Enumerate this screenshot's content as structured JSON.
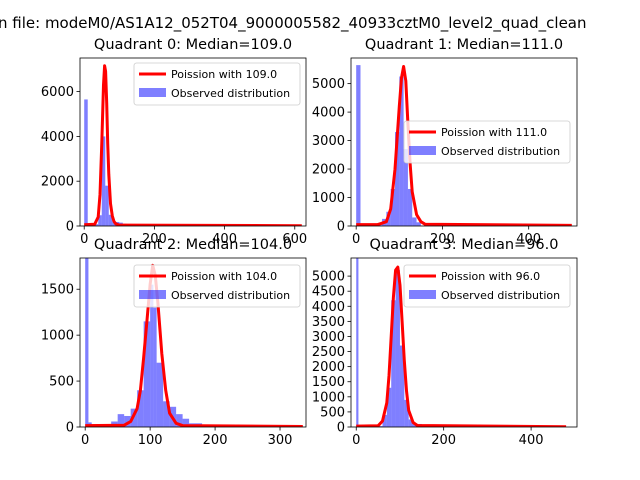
{
  "figure": {
    "suptitle": "n file: modeM0/AS1A12_052T04_9000005582_40933cztM0_level2_quad_clean"
  },
  "colors": {
    "fit": "#ff0000",
    "observed": "#0000ff",
    "axes": "#000000",
    "background": "#ffffff"
  },
  "chart_data": [
    {
      "type": "bar",
      "title": "Quadrant 0: Median=109.0",
      "xlim": [
        -12,
        632
      ],
      "ylim": [
        0,
        7500
      ],
      "xticks": [
        0,
        200,
        400,
        600
      ],
      "yticks": [
        0,
        2000,
        4000,
        6000
      ],
      "legend": {
        "placement": "top-right",
        "entries": [
          "Poission with 109.0",
          "Observed distribution"
        ]
      },
      "series": [
        {
          "name": "Observed distribution",
          "kind": "histogram",
          "bins": [
            [
              0,
              10,
              5650
            ],
            [
              10,
              20,
              80
            ],
            [
              20,
              30,
              70
            ],
            [
              30,
              40,
              80
            ],
            [
              40,
              50,
              480
            ],
            [
              50,
              60,
              4000
            ],
            [
              60,
              70,
              1800
            ],
            [
              70,
              80,
              500
            ],
            [
              80,
              90,
              200
            ],
            [
              90,
              100,
              180
            ],
            [
              100,
              110,
              150
            ],
            [
              110,
              120,
              100
            ],
            [
              120,
              130,
              60
            ],
            [
              130,
              150,
              30
            ],
            [
              150,
              620,
              15
            ]
          ]
        },
        {
          "name": "Poission with 109.0",
          "kind": "line",
          "x": [
            0,
            30,
            40,
            45,
            50,
            55,
            58,
            61,
            64,
            67,
            70,
            75,
            80,
            85,
            90,
            100,
            620
          ],
          "y": [
            60,
            80,
            400,
            1400,
            3700,
            6300,
            7150,
            6900,
            5500,
            3700,
            2300,
            1000,
            450,
            200,
            100,
            40,
            15
          ]
        }
      ]
    },
    {
      "type": "bar",
      "title": "Quadrant 1: Median=111.0",
      "xlim": [
        -12,
        512
      ],
      "ylim": [
        0,
        5900
      ],
      "xticks": [
        0,
        200,
        400
      ],
      "yticks": [
        0,
        1000,
        2000,
        3000,
        4000,
        5000
      ],
      "legend": {
        "placement": "center-right",
        "entries": [
          "Poission with 111.0",
          "Observed distribution"
        ]
      },
      "series": [
        {
          "name": "Observed distribution",
          "kind": "histogram",
          "bins": [
            [
              0,
              10,
              5650
            ],
            [
              10,
              60,
              30
            ],
            [
              60,
              70,
              250
            ],
            [
              70,
              80,
              500
            ],
            [
              80,
              90,
              1300
            ],
            [
              90,
              100,
              3300
            ],
            [
              100,
              110,
              5250
            ],
            [
              110,
              120,
              2700
            ],
            [
              120,
              130,
              1300
            ],
            [
              130,
              140,
              300
            ],
            [
              140,
              150,
              130
            ],
            [
              150,
              500,
              10
            ]
          ]
        },
        {
          "name": "Poission with 111.0",
          "kind": "line",
          "x": [
            0,
            50,
            70,
            80,
            90,
            100,
            105,
            110,
            115,
            120,
            125,
            130,
            140,
            150,
            160,
            500
          ],
          "y": [
            50,
            50,
            150,
            600,
            2000,
            4200,
            5200,
            5600,
            5100,
            3600,
            2200,
            1200,
            400,
            150,
            60,
            20
          ]
        }
      ]
    },
    {
      "type": "bar",
      "title": "Quadrant 2: Median=104.0",
      "xlim": [
        -8,
        340
      ],
      "ylim": [
        0,
        1840
      ],
      "xticks": [
        0,
        100,
        200,
        300
      ],
      "yticks": [
        0,
        500,
        1000,
        1500
      ],
      "legend": {
        "placement": "top-right",
        "entries": [
          "Poission with 104.0",
          "Observed distribution"
        ]
      },
      "series": [
        {
          "name": "Observed distribution",
          "kind": "histogram",
          "bins": [
            [
              0,
              5,
              1840
            ],
            [
              5,
              10,
              50
            ],
            [
              10,
              40,
              30
            ],
            [
              40,
              50,
              60
            ],
            [
              50,
              60,
              140
            ],
            [
              60,
              70,
              120
            ],
            [
              70,
              80,
              200
            ],
            [
              80,
              90,
              400
            ],
            [
              90,
              100,
              1150
            ],
            [
              100,
              105,
              1550
            ],
            [
              105,
              110,
              1300
            ],
            [
              110,
              120,
              700
            ],
            [
              120,
              130,
              280
            ],
            [
              130,
              140,
              220
            ],
            [
              140,
              150,
              140
            ],
            [
              150,
              160,
              90
            ],
            [
              160,
              180,
              40
            ],
            [
              180,
              335,
              10
            ]
          ]
        },
        {
          "name": "Poission with 104.0",
          "kind": "line",
          "x": [
            0,
            60,
            70,
            80,
            85,
            90,
            95,
            100,
            104,
            108,
            112,
            118,
            124,
            130,
            140,
            150,
            335
          ],
          "y": [
            15,
            20,
            60,
            200,
            400,
            750,
            1150,
            1550,
            1760,
            1650,
            1350,
            800,
            400,
            150,
            40,
            15,
            5
          ]
        }
      ]
    },
    {
      "type": "bar",
      "title": "Quadrant 3: Median=96.0",
      "xlim": [
        -12,
        505
      ],
      "ylim": [
        0,
        5600
      ],
      "xticks": [
        0,
        200,
        400
      ],
      "yticks": [
        0,
        500,
        1000,
        1500,
        2000,
        2500,
        3000,
        3500,
        4000,
        4500,
        5000
      ],
      "legend": {
        "placement": "top-right",
        "entries": [
          "Poission with 96.0",
          "Observed distribution"
        ]
      },
      "series": [
        {
          "name": "Observed distribution",
          "kind": "histogram",
          "bins": [
            [
              0,
              5,
              5600
            ],
            [
              5,
              60,
              30
            ],
            [
              60,
              70,
              400
            ],
            [
              70,
              80,
              1300
            ],
            [
              80,
              90,
              4200
            ],
            [
              90,
              100,
              5200
            ],
            [
              100,
              110,
              2700
            ],
            [
              110,
              120,
              900
            ],
            [
              120,
              130,
              250
            ],
            [
              130,
              150,
              100
            ],
            [
              150,
              480,
              10
            ]
          ]
        },
        {
          "name": "Poission with 96.0",
          "kind": "line",
          "x": [
            0,
            50,
            60,
            70,
            75,
            80,
            85,
            90,
            95,
            100,
            105,
            110,
            115,
            120,
            130,
            140,
            480
          ],
          "y": [
            30,
            40,
            200,
            800,
            1700,
            3000,
            4300,
            5200,
            5300,
            4700,
            3500,
            2200,
            1200,
            550,
            150,
            50,
            10
          ]
        }
      ]
    }
  ]
}
